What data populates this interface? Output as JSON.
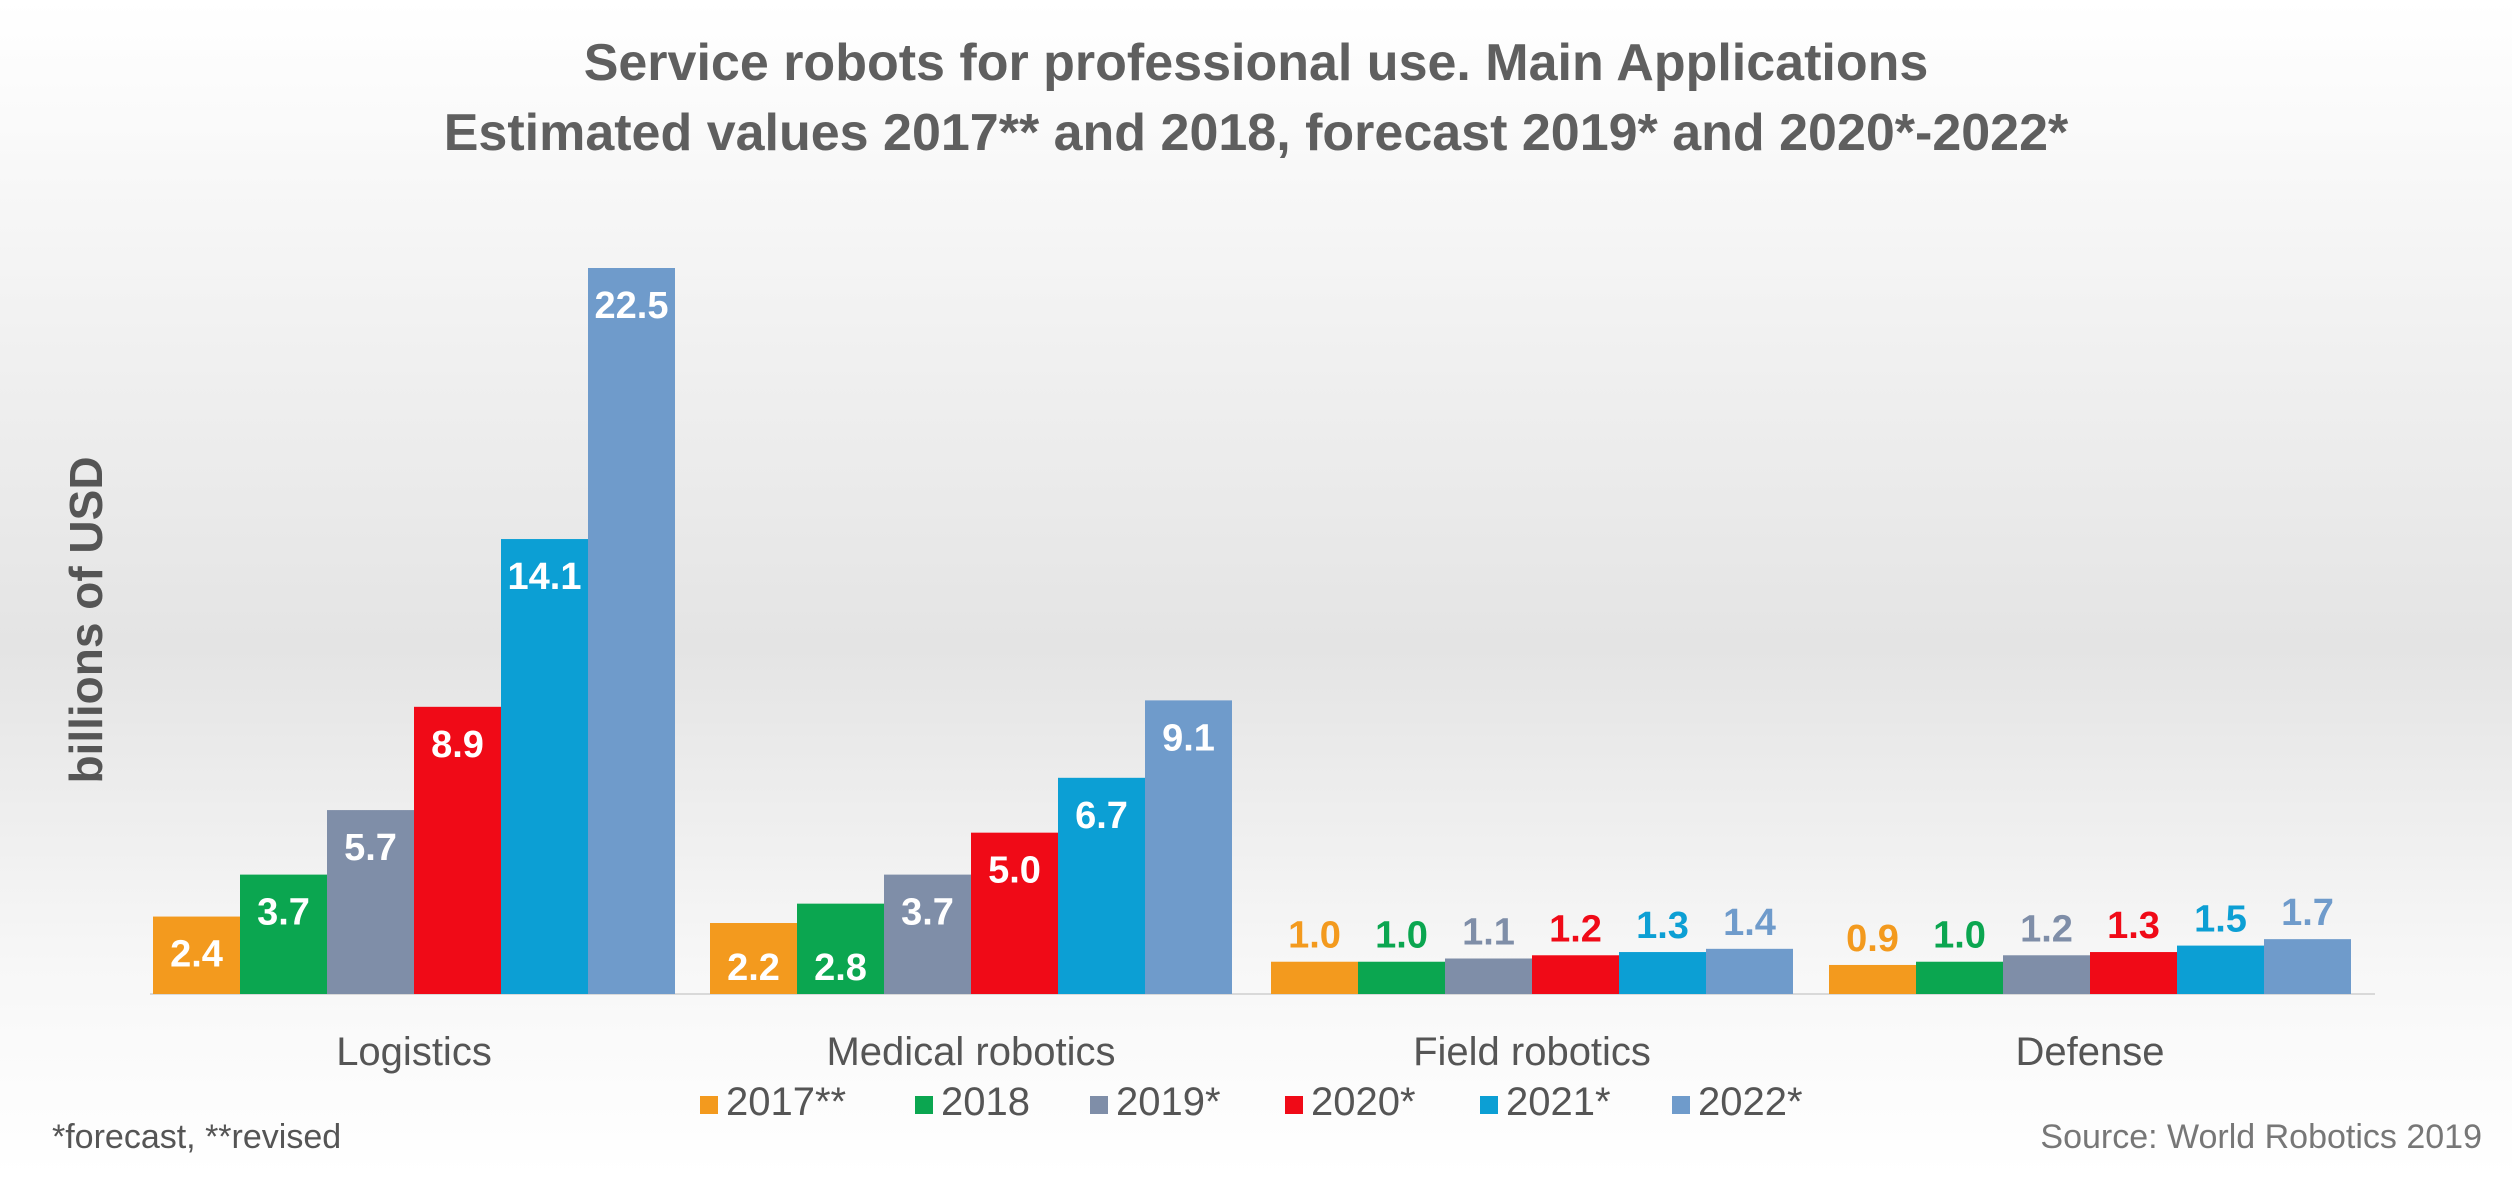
{
  "chart_data": {
    "type": "bar",
    "title": "Service robots for professional use. Main Applications",
    "subtitle": "Estimated values 2017** and 2018, forecast 2019* and 2020*-2022*",
    "ylabel": "billions of USD",
    "xlabel": "",
    "ylim": [
      0,
      24
    ],
    "grid": false,
    "legend_position": "bottom-center",
    "categories": [
      "Logistics",
      "Medical robotics",
      "Field robotics",
      "Defense"
    ],
    "series": [
      {
        "name": "2017**",
        "color": "#F39A1E",
        "values": [
          2.4,
          2.2,
          1.0,
          0.9
        ],
        "labels": [
          "2.4",
          "2.2",
          "1.0",
          "0.9"
        ]
      },
      {
        "name": "2018",
        "color": "#0BA650",
        "values": [
          3.7,
          2.8,
          1.0,
          1.0
        ],
        "labels": [
          "3.7",
          "2.8",
          "1.0",
          "1.0"
        ]
      },
      {
        "name": "2019*",
        "color": "#7F8EA8",
        "values": [
          5.7,
          3.7,
          1.1,
          1.2
        ],
        "labels": [
          "5.7",
          "3.7",
          "1.1",
          "1.2"
        ]
      },
      {
        "name": "2020*",
        "color": "#F00A17",
        "values": [
          8.9,
          5.0,
          1.2,
          1.3
        ],
        "labels": [
          "8.9",
          "5.0",
          "1.2",
          "1.3"
        ]
      },
      {
        "name": "2021*",
        "color": "#0C9FD4",
        "values": [
          14.1,
          6.7,
          1.3,
          1.5
        ],
        "labels": [
          "14.1",
          "6.7",
          "1.3",
          "1.5"
        ]
      },
      {
        "name": "2022*",
        "color": "#6F9BCB",
        "values": [
          22.5,
          9.1,
          1.4,
          1.7
        ],
        "labels": [
          "22.5",
          "9.1",
          "1.4",
          "1.7"
        ]
      }
    ],
    "footnote": "*forecast, **revised",
    "source": "Source: World Robotics 2019"
  }
}
